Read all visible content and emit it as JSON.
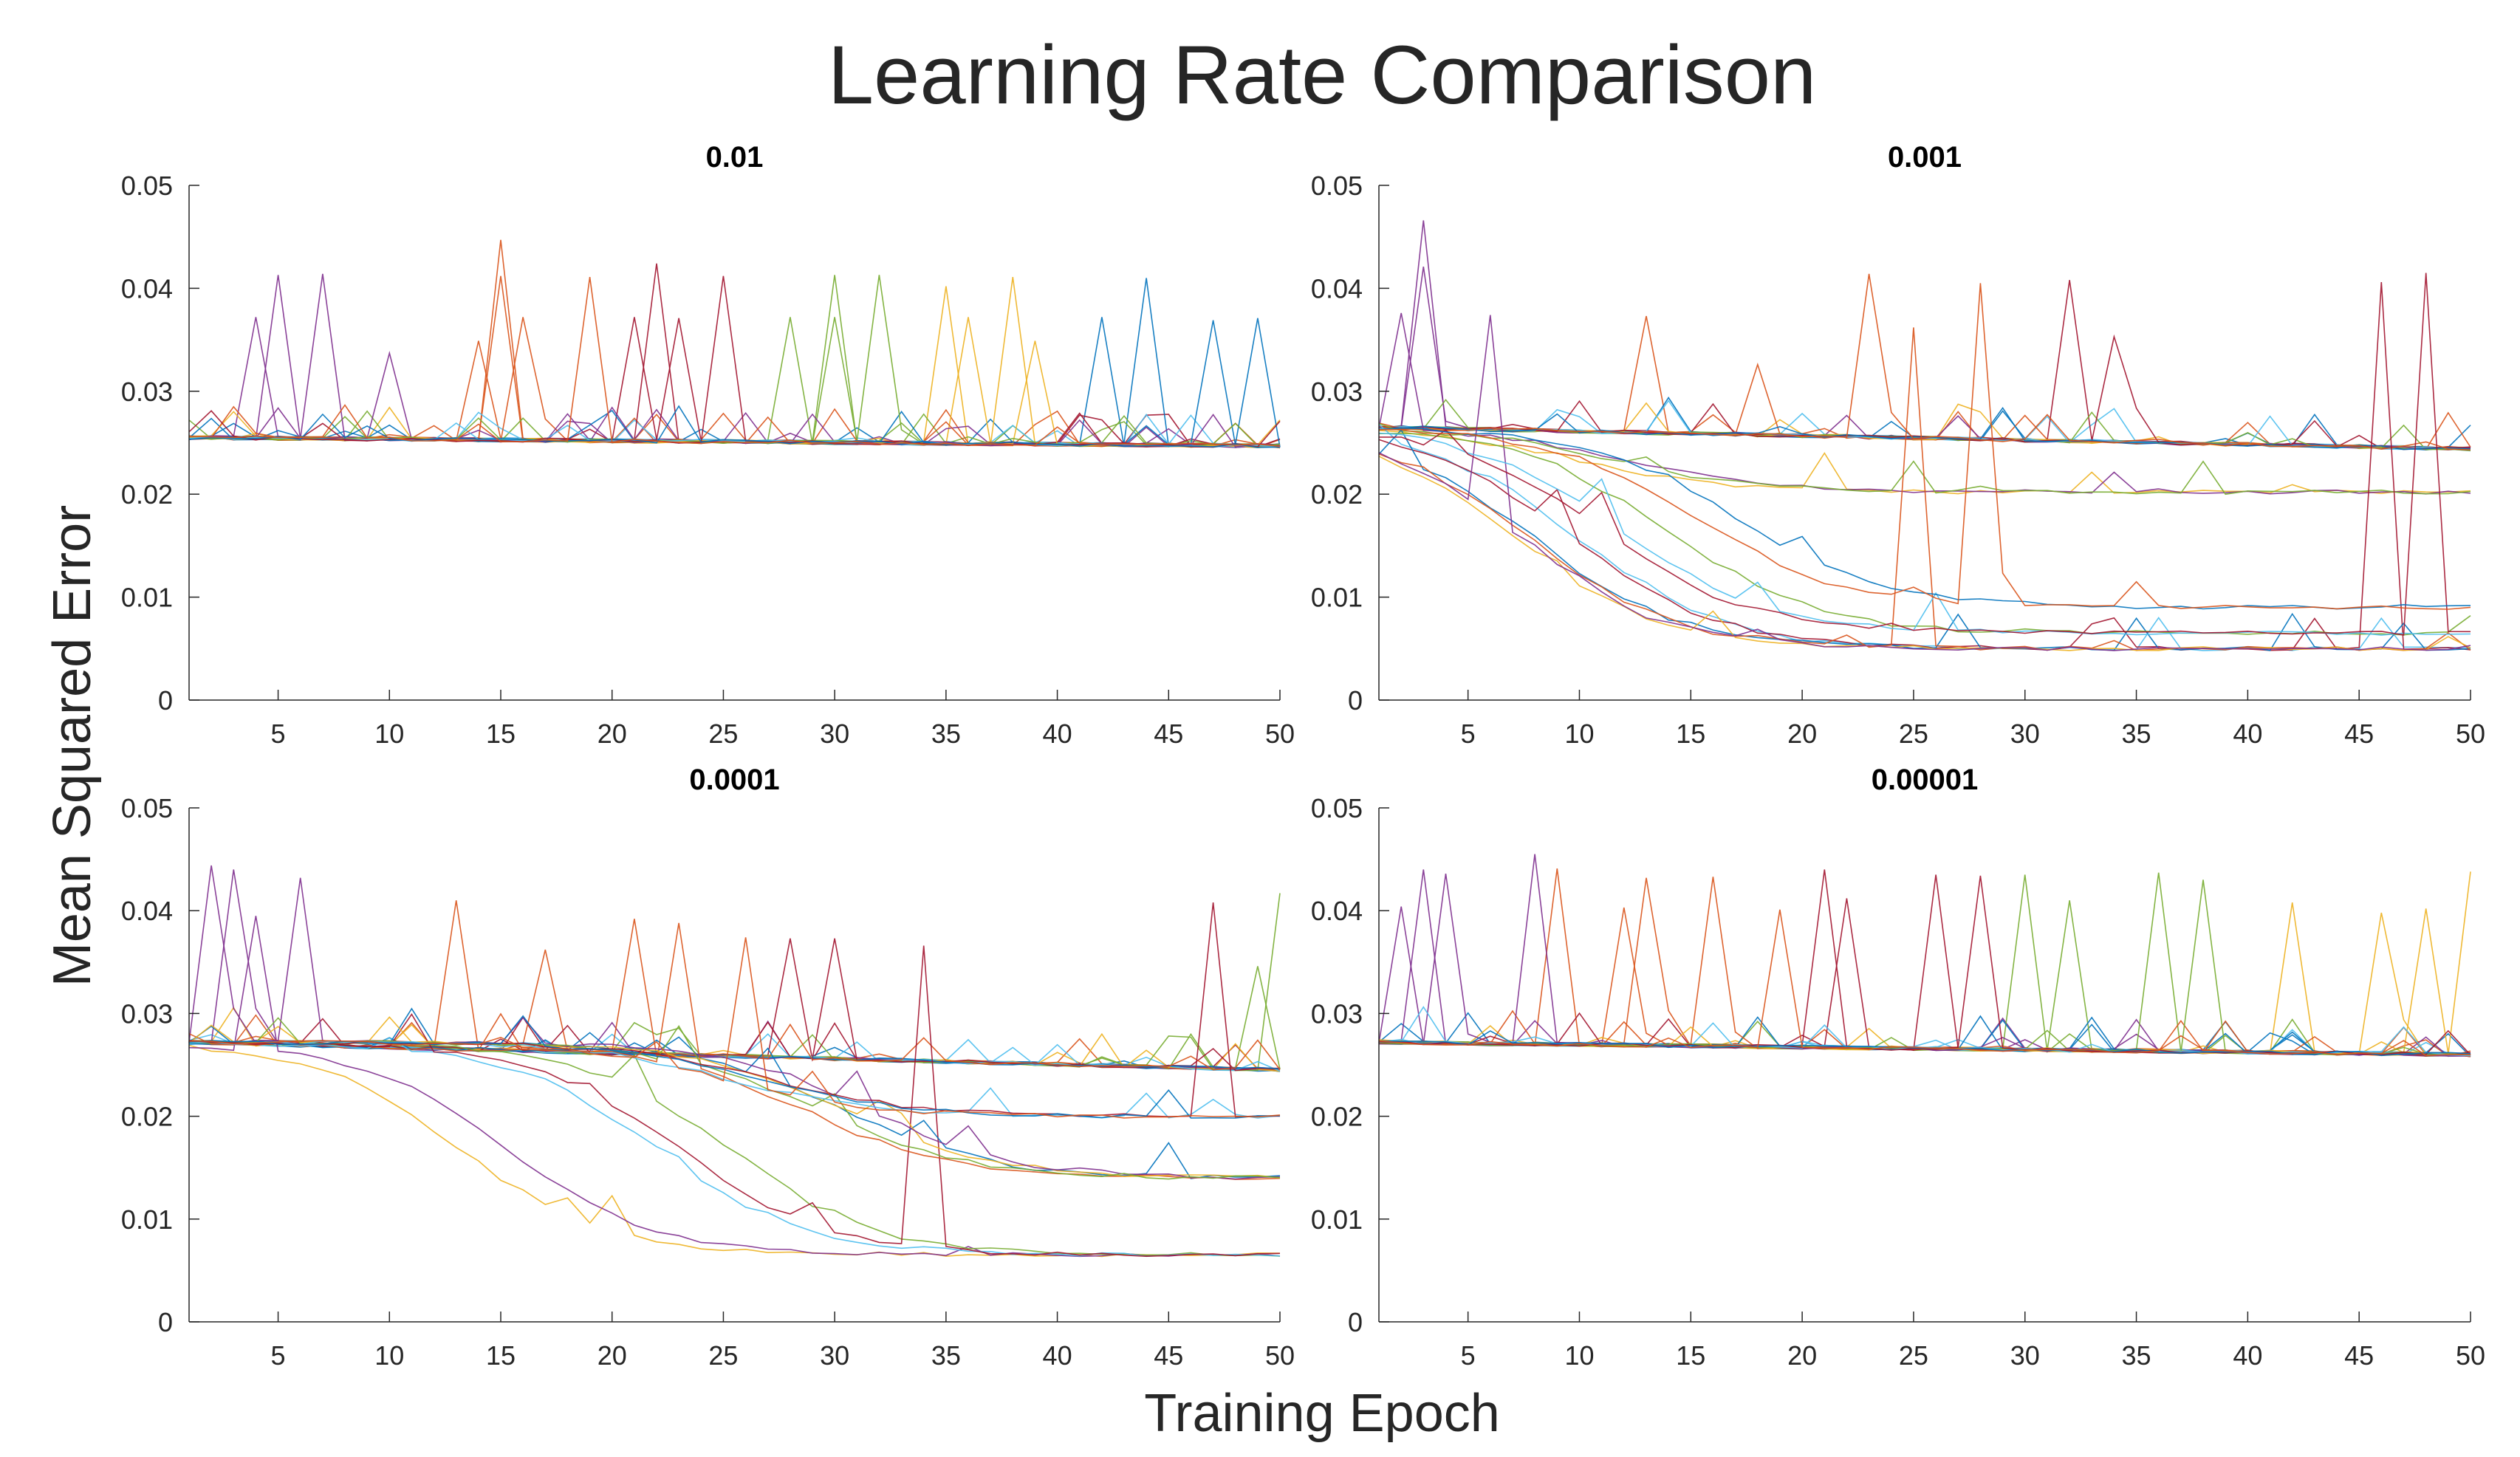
{
  "title": "Learning Rate Comparison",
  "xlabel": "Training Epoch",
  "ylabel": "Mean Squared Error",
  "chart_data": [
    {
      "type": "line",
      "title": "0.01",
      "xlim": [
        1,
        50
      ],
      "ylim": [
        0,
        0.05
      ],
      "xticks": [
        5,
        10,
        15,
        20,
        25,
        30,
        35,
        40,
        45,
        50
      ],
      "yticks": [
        0,
        0.01,
        0.02,
        0.03,
        0.04,
        0.05
      ],
      "ytick_labels": [
        "0",
        "0.01",
        "0.02",
        "0.03",
        "0.04",
        "0.05"
      ],
      "n_runs": 30,
      "profiles": [
        {
          "start": 0.0255,
          "end": 0.0247,
          "count": 30
        }
      ],
      "spikes": [
        [
          5,
          0.0413
        ],
        [
          4,
          0.0372
        ],
        [
          7,
          0.0414
        ],
        [
          10,
          0.0337
        ],
        [
          14,
          0.0349
        ],
        [
          15,
          0.0447
        ],
        [
          15,
          0.0412
        ],
        [
          16,
          0.0372
        ],
        [
          19,
          0.0411
        ],
        [
          21,
          0.0372
        ],
        [
          22,
          0.0424
        ],
        [
          23,
          0.0371
        ],
        [
          25,
          0.0412
        ],
        [
          28,
          0.0372
        ],
        [
          30,
          0.0413
        ],
        [
          30,
          0.0372
        ],
        [
          32,
          0.0413
        ],
        [
          35,
          0.0402
        ],
        [
          36,
          0.0372
        ],
        [
          38,
          0.0411
        ],
        [
          39,
          0.0349
        ],
        [
          42,
          0.0372
        ],
        [
          44,
          0.041
        ],
        [
          47,
          0.0369
        ],
        [
          49,
          0.0371
        ]
      ]
    },
    {
      "type": "line",
      "title": "0.001",
      "xlim": [
        1,
        50
      ],
      "ylim": [
        0,
        0.05
      ],
      "xticks": [
        5,
        10,
        15,
        20,
        25,
        30,
        35,
        40,
        45,
        50
      ],
      "yticks": [
        0,
        0.01,
        0.02,
        0.03,
        0.04,
        0.05
      ],
      "ytick_labels": [
        "0",
        "0.01",
        "0.02",
        "0.03",
        "0.04",
        "0.05"
      ],
      "n_runs": 30,
      "profiles": [
        {
          "start": 0.0265,
          "end": 0.0244,
          "count": 16
        },
        {
          "start": 0.0265,
          "end": 0.0202,
          "drop_epoch": 11,
          "count": 3
        },
        {
          "start": 0.0265,
          "end": 0.005,
          "drop_epoch": 8,
          "count": 6
        },
        {
          "start": 0.0265,
          "end": 0.0065,
          "drop_epoch": 12,
          "count": 3
        },
        {
          "start": 0.0265,
          "end": 0.009,
          "drop_epoch": 16,
          "count": 2
        }
      ],
      "spikes": [
        [
          3,
          0.0466
        ],
        [
          3,
          0.0421
        ],
        [
          2,
          0.0376
        ],
        [
          6,
          0.0374
        ],
        [
          13,
          0.0373
        ],
        [
          18,
          0.0326
        ],
        [
          23,
          0.0414
        ],
        [
          25,
          0.0362
        ],
        [
          28,
          0.0405
        ],
        [
          32,
          0.0408
        ],
        [
          34,
          0.0353
        ],
        [
          46,
          0.0406
        ],
        [
          48,
          0.0415
        ]
      ]
    },
    {
      "type": "line",
      "title": "0.0001",
      "xlim": [
        1,
        50
      ],
      "ylim": [
        0,
        0.05
      ],
      "xticks": [
        5,
        10,
        15,
        20,
        25,
        30,
        35,
        40,
        45,
        50
      ],
      "yticks": [
        0,
        0.01,
        0.02,
        0.03,
        0.04,
        0.05
      ],
      "ytick_labels": [
        "0",
        "0.01",
        "0.02",
        "0.03",
        "0.04",
        "0.05"
      ],
      "n_runs": 30,
      "profiles": [
        {
          "start": 0.0272,
          "end": 0.0245,
          "count": 16
        },
        {
          "start": 0.0272,
          "end": 0.0065,
          "drop_epoch": 14,
          "count": 2
        },
        {
          "start": 0.0272,
          "end": 0.0065,
          "drop_epoch": 24,
          "count": 3
        },
        {
          "start": 0.0272,
          "end": 0.014,
          "drop_epoch": 30,
          "count": 5
        },
        {
          "start": 0.0272,
          "end": 0.02,
          "drop_epoch": 26,
          "count": 4
        }
      ],
      "spikes": [
        [
          2,
          0.0444
        ],
        [
          3,
          0.044
        ],
        [
          4,
          0.0395
        ],
        [
          6,
          0.0432
        ],
        [
          13,
          0.041
        ],
        [
          17,
          0.0362
        ],
        [
          21,
          0.0392
        ],
        [
          23,
          0.0388
        ],
        [
          26,
          0.0374
        ],
        [
          28,
          0.0373
        ],
        [
          30,
          0.0373
        ],
        [
          34,
          0.0366
        ],
        [
          47,
          0.0408
        ],
        [
          49,
          0.0346
        ],
        [
          50,
          0.0417
        ]
      ]
    },
    {
      "type": "line",
      "title": "0.00001",
      "xlim": [
        1,
        50
      ],
      "ylim": [
        0,
        0.05
      ],
      "xticks": [
        5,
        10,
        15,
        20,
        25,
        30,
        35,
        40,
        45,
        50
      ],
      "yticks": [
        0,
        0.01,
        0.02,
        0.03,
        0.04,
        0.05
      ],
      "ytick_labels": [
        "0",
        "0.01",
        "0.02",
        "0.03",
        "0.04",
        "0.05"
      ],
      "n_runs": 30,
      "profiles": [
        {
          "start": 0.0272,
          "end": 0.026,
          "count": 30
        }
      ],
      "spikes": [
        [
          2,
          0.0404
        ],
        [
          3,
          0.044
        ],
        [
          4,
          0.0436
        ],
        [
          8,
          0.0455
        ],
        [
          9,
          0.0441
        ],
        [
          12,
          0.0403
        ],
        [
          13,
          0.0432
        ],
        [
          16,
          0.0433
        ],
        [
          19,
          0.0401
        ],
        [
          21,
          0.044
        ],
        [
          22,
          0.0412
        ],
        [
          26,
          0.0435
        ],
        [
          28,
          0.0434
        ],
        [
          30,
          0.0435
        ],
        [
          32,
          0.041
        ],
        [
          36,
          0.0437
        ],
        [
          38,
          0.043
        ],
        [
          42,
          0.0408
        ],
        [
          46,
          0.0398
        ],
        [
          48,
          0.0402
        ],
        [
          50,
          0.0438
        ]
      ]
    }
  ],
  "colors": [
    "#0072BD",
    "#D95319",
    "#EDB120",
    "#7E2F8E",
    "#77AC30",
    "#4DBEEE",
    "#A2142F"
  ]
}
